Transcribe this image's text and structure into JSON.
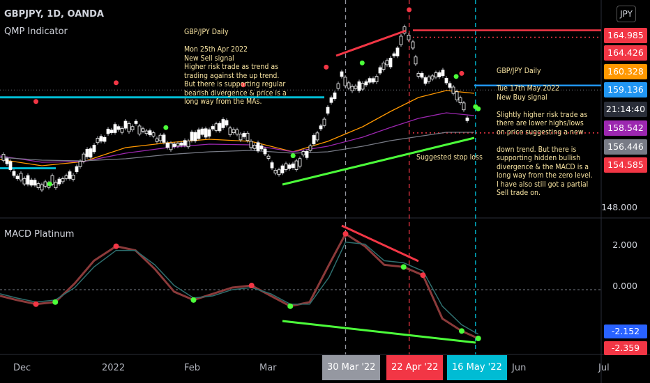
{
  "header": {
    "symbol": "GBPJPY, 1D, OANDA",
    "indicator": "QMP Indicator",
    "macd_label": "MACD Platinum",
    "currency": "JPY"
  },
  "notes": {
    "sell": [
      "GBP/JPY Daily",
      "",
      "Mon 25th Apr 2022",
      "New Sell signal",
      "Higher risk trade as trend as",
      "trading against the up trend.",
      "But there is supporting regular",
      "bearish divergence & price is a",
      "long way from the MAs."
    ],
    "buy": [
      "GBP/JPY Daily",
      "",
      "Tue 17th May 2022",
      "New Buy signal",
      "",
      "Slightly higher risk trade as",
      "there are lower highs/lows",
      "on price suggesting a new",
      "",
      "down trend. But there is",
      "supporting hidden bullish",
      "divergence & the MACD is a",
      "long way from the zero level.",
      "I have also still got a partial",
      "Sell trade on."
    ],
    "stop": "Suggested stop loss"
  },
  "price_axis": {
    "tags": [
      {
        "label": "164.985",
        "color": "#f23645"
      },
      {
        "label": "164.426",
        "color": "#f23645"
      },
      {
        "label": "160.328",
        "color": "#ff9800"
      },
      {
        "label": "159.136",
        "color": "#2196f3"
      },
      {
        "label": "21:14:40",
        "color": "#2a2e39"
      },
      {
        "label": "158.542",
        "color": "#9c27b0"
      },
      {
        "label": "156.446",
        "color": "#787b86"
      },
      {
        "label": "154.585",
        "color": "#f23645"
      }
    ],
    "plain": [
      "148.000"
    ],
    "macd_plain": [
      "2.000",
      "0.000"
    ],
    "macd_tags": [
      {
        "label": "-2.152",
        "color": "#2962ff"
      },
      {
        "label": "-2.359",
        "color": "#f23645"
      }
    ]
  },
  "time_axis": {
    "labels": [
      "Dec",
      "2022",
      "Feb",
      "Mar",
      "Jun",
      "Jul"
    ],
    "badges": [
      {
        "label": "30 Mar '22",
        "color": "#9598a1"
      },
      {
        "label": "22 Apr '22",
        "color": "#f23645"
      },
      {
        "label": "16 May '22",
        "color": "#00bcd4"
      }
    ]
  },
  "chart_data": [
    {
      "type": "candlestick",
      "title": "GBPJPY, 1D, OANDA",
      "x_range": [
        "2021-11-25",
        "2022-07-05"
      ],
      "ylim": [
        146.5,
        166.8
      ],
      "overlays": [
        "QMP Indicator"
      ],
      "ma_series": [
        {
          "color": "#ff9800",
          "last": 160.328
        },
        {
          "color": "#9c27b0",
          "last": 158.542
        },
        {
          "color": "#787b86",
          "last": 156.446
        }
      ],
      "levels": [
        {
          "color": "#00bcd4",
          "value": 158.0
        },
        {
          "color": "#00bcd4",
          "value": 151.2
        },
        {
          "color": "#f23645",
          "value": 164.426
        },
        {
          "color": "#f23645",
          "value": 154.585
        },
        {
          "color": "#2196f3",
          "value": 159.136
        }
      ],
      "markers": {
        "sell": [
          [
            "2021-12-08",
            157.6
          ],
          [
            "2022-01-06",
            159.4
          ],
          [
            "2022-02-21",
            159.2
          ],
          [
            "2022-03-23",
            160.9
          ],
          [
            "2022-04-22",
            166.4
          ],
          [
            "2022-05-11",
            160.3
          ]
        ],
        "buy": [
          [
            "2021-12-13",
            149.7
          ],
          [
            "2022-01-24",
            155.1
          ],
          [
            "2022-03-11",
            152.4
          ],
          [
            "2022-04-05",
            161.3
          ],
          [
            "2022-05-09",
            160.0
          ],
          [
            "2022-05-16",
            157.1
          ]
        ]
      }
    },
    {
      "type": "line",
      "title": "MACD Platinum",
      "ylim": [
        -3.1,
        3.3
      ],
      "x": [
        "2021-11-25",
        "2021-12-01",
        "2021-12-08",
        "2021-12-15",
        "2021-12-22",
        "2021-12-29",
        "2022-01-06",
        "2022-01-13",
        "2022-01-20",
        "2022-01-27",
        "2022-02-03",
        "2022-02-10",
        "2022-02-17",
        "2022-02-24",
        "2022-03-03",
        "2022-03-10",
        "2022-03-17",
        "2022-03-24",
        "2022-03-30",
        "2022-04-06",
        "2022-04-13",
        "2022-04-20",
        "2022-04-27",
        "2022-05-04",
        "2022-05-11",
        "2022-05-17"
      ],
      "series": [
        {
          "values": [
            -0.3,
            -0.5,
            -0.7,
            -0.6,
            0.3,
            1.4,
            2.1,
            1.9,
            1.0,
            -0.1,
            -0.5,
            -0.2,
            0.1,
            0.2,
            -0.3,
            -0.8,
            -0.6,
            1.2,
            2.7,
            2.1,
            1.2,
            1.1,
            0.7,
            -1.4,
            -2.0,
            -2.359
          ]
        },
        {
          "values": [
            -0.2,
            -0.4,
            -0.6,
            -0.5,
            0.1,
            1.1,
            1.9,
            1.9,
            1.2,
            0.2,
            -0.4,
            -0.3,
            0.0,
            0.1,
            -0.2,
            -0.7,
            -0.7,
            0.6,
            2.3,
            2.2,
            1.4,
            1.3,
            0.9,
            -0.8,
            -1.7,
            -2.152
          ]
        }
      ],
      "zero_line": 0.0
    }
  ]
}
